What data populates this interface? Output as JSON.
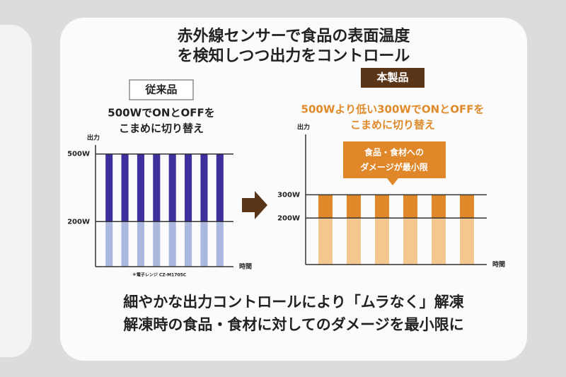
{
  "title": [
    "赤外線センサーで食品の表面温度",
    "を検知しつつ出力をコントロール"
  ],
  "chart_data": [
    {
      "type": "bar",
      "stacked": true,
      "label": "従来品",
      "subtitle": [
        "500WでONとOFFを",
        "こまめに切り替え"
      ],
      "subtitle_color": "#222222",
      "ylabel": "出力",
      "xlabel": "時間",
      "footnote": "＊電子レンジ CZ-M1705C",
      "categories": [
        null,
        null,
        null,
        null,
        null,
        null,
        null,
        null
      ],
      "series": [
        {
          "color": "#aab8df",
          "values": [
            200,
            200,
            200,
            200,
            200,
            200,
            200,
            200
          ]
        },
        {
          "color": "#3d2f9c",
          "values": [
            300,
            300,
            300,
            300,
            300,
            300,
            300,
            300
          ]
        }
      ],
      "ylim": [
        0,
        540
      ],
      "yticks": [
        {
          "value": 200,
          "label": "200W"
        },
        {
          "value": 500,
          "label": "500W"
        }
      ],
      "grid": true
    },
    {
      "type": "bar",
      "stacked": true,
      "label": "本製品",
      "subtitle": [
        "500Wより低い300WでONとOFFを",
        "こまめに切り替え"
      ],
      "subtitle_color": "#e08a2a",
      "ylabel": "出力",
      "xlabel": "時間",
      "annotation": [
        "食品・食材への",
        "ダメージが最小限"
      ],
      "categories": [
        null,
        null,
        null,
        null,
        null,
        null
      ],
      "series": [
        {
          "color": "#f4c690",
          "values": [
            200,
            200,
            200,
            200,
            200,
            200
          ]
        },
        {
          "color": "#e0872a",
          "values": [
            100,
            100,
            100,
            100,
            100,
            100
          ]
        }
      ],
      "ylim": [
        0,
        560
      ],
      "yticks": [
        {
          "value": 200,
          "label": "200W"
        },
        {
          "value": 300,
          "label": "300W"
        }
      ],
      "grid": true
    }
  ],
  "caption": [
    "細やかな出力コントロールにより「ムラなく」解凍",
    "解凍時の食品・食材に対してのダメージを最小限に"
  ]
}
